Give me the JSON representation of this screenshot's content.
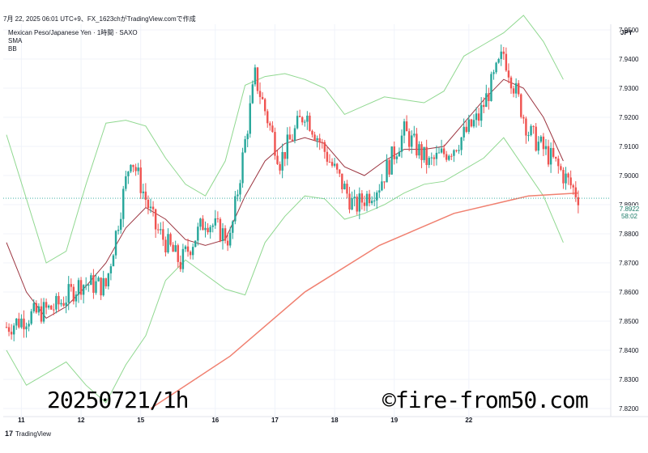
{
  "header": {
    "text": "7月 22, 2025 06:01 UTC+9、FX_1623chがTradingView.comで作成"
  },
  "legend": {
    "symbol_line": "Mexican Peso/Japanese Yen · 1時間 · SAXO",
    "indicator1": "SMA",
    "indicator2": "BB"
  },
  "price_axis": {
    "currency": "JPY"
  },
  "current_price": {
    "value": "7.8922",
    "countdown": "58:02"
  },
  "watermarks": {
    "left": "20250721/1h",
    "right": "©fire-from50.com"
  },
  "footer": {
    "brand": "TradingView",
    "logo": "tv-logo-icon"
  },
  "colors": {
    "bull": "#26a69a",
    "bear": "#ef5350",
    "bb_band": "#90d890",
    "bb_basis": "#9c3540",
    "sma": "#f08070",
    "grid": "#f0f3fa",
    "current_line": "#26a69a"
  },
  "chart_data": {
    "type": "candlestick",
    "title": "",
    "x_tick_labels": [
      "11",
      "12",
      "15",
      "16",
      "17",
      "18",
      "19",
      "22"
    ],
    "y_tick_labels": [
      "7.8200",
      "7.8300",
      "7.8400",
      "7.8500",
      "7.8600",
      "7.8700",
      "7.8800",
      "7.8900",
      "7.9000",
      "7.9100",
      "7.9200",
      "7.9300",
      "7.9400",
      "7.9500"
    ],
    "ylim": [
      7.8195,
      7.9575
    ],
    "grid": true,
    "close_points": [
      {
        "t": 0,
        "v": 7.848
      },
      {
        "t": 10,
        "v": 7.852
      },
      {
        "t": 20,
        "v": 7.855
      },
      {
        "t": 30,
        "v": 7.863
      },
      {
        "t": 40,
        "v": 7.862
      },
      {
        "t": 50,
        "v": 7.907
      },
      {
        "t": 60,
        "v": 7.882
      },
      {
        "t": 70,
        "v": 7.87
      },
      {
        "t": 80,
        "v": 7.885
      },
      {
        "t": 90,
        "v": 7.878
      },
      {
        "t": 100,
        "v": 7.934
      },
      {
        "t": 110,
        "v": 7.905
      },
      {
        "t": 120,
        "v": 7.922
      },
      {
        "t": 130,
        "v": 7.905
      },
      {
        "t": 140,
        "v": 7.889
      },
      {
        "t": 150,
        "v": 7.897
      },
      {
        "t": 160,
        "v": 7.915
      },
      {
        "t": 170,
        "v": 7.904
      },
      {
        "t": 180,
        "v": 7.91
      },
      {
        "t": 190,
        "v": 7.92
      },
      {
        "t": 200,
        "v": 7.942
      },
      {
        "t": 210,
        "v": 7.915
      },
      {
        "t": 220,
        "v": 7.905
      },
      {
        "t": 230,
        "v": 7.893
      }
    ],
    "sma_points": [
      {
        "t": 58,
        "v": 7.82
      },
      {
        "t": 90,
        "v": 7.838
      },
      {
        "t": 120,
        "v": 7.86
      },
      {
        "t": 150,
        "v": 7.876
      },
      {
        "t": 180,
        "v": 7.887
      },
      {
        "t": 210,
        "v": 7.893
      },
      {
        "t": 230,
        "v": 7.894
      }
    ],
    "bb_basis_points": [
      {
        "t": 0,
        "v": 7.877
      },
      {
        "t": 8,
        "v": 7.86
      },
      {
        "t": 16,
        "v": 7.851
      },
      {
        "t": 24,
        "v": 7.855
      },
      {
        "t": 32,
        "v": 7.862
      },
      {
        "t": 40,
        "v": 7.87
      },
      {
        "t": 48,
        "v": 7.882
      },
      {
        "t": 56,
        "v": 7.889
      },
      {
        "t": 64,
        "v": 7.885
      },
      {
        "t": 72,
        "v": 7.878
      },
      {
        "t": 80,
        "v": 7.876
      },
      {
        "t": 88,
        "v": 7.878
      },
      {
        "t": 96,
        "v": 7.893
      },
      {
        "t": 104,
        "v": 7.905
      },
      {
        "t": 112,
        "v": 7.911
      },
      {
        "t": 120,
        "v": 7.913
      },
      {
        "t": 128,
        "v": 7.911
      },
      {
        "t": 136,
        "v": 7.903
      },
      {
        "t": 144,
        "v": 7.9
      },
      {
        "t": 152,
        "v": 7.905
      },
      {
        "t": 160,
        "v": 7.909
      },
      {
        "t": 168,
        "v": 7.909
      },
      {
        "t": 176,
        "v": 7.91
      },
      {
        "t": 184,
        "v": 7.918
      },
      {
        "t": 192,
        "v": 7.926
      },
      {
        "t": 200,
        "v": 7.933
      },
      {
        "t": 208,
        "v": 7.93
      },
      {
        "t": 216,
        "v": 7.92
      },
      {
        "t": 224,
        "v": 7.905
      }
    ],
    "bb_upper_points": [
      {
        "t": 0,
        "v": 7.914
      },
      {
        "t": 8,
        "v": 7.892
      },
      {
        "t": 16,
        "v": 7.87
      },
      {
        "t": 24,
        "v": 7.874
      },
      {
        "t": 32,
        "v": 7.897
      },
      {
        "t": 40,
        "v": 7.918
      },
      {
        "t": 48,
        "v": 7.919
      },
      {
        "t": 56,
        "v": 7.917
      },
      {
        "t": 64,
        "v": 7.906
      },
      {
        "t": 72,
        "v": 7.897
      },
      {
        "t": 80,
        "v": 7.893
      },
      {
        "t": 88,
        "v": 7.905
      },
      {
        "t": 96,
        "v": 7.931
      },
      {
        "t": 104,
        "v": 7.934
      },
      {
        "t": 112,
        "v": 7.935
      },
      {
        "t": 120,
        "v": 7.933
      },
      {
        "t": 128,
        "v": 7.93
      },
      {
        "t": 136,
        "v": 7.921
      },
      {
        "t": 144,
        "v": 7.924
      },
      {
        "t": 152,
        "v": 7.927
      },
      {
        "t": 160,
        "v": 7.926
      },
      {
        "t": 168,
        "v": 7.925
      },
      {
        "t": 176,
        "v": 7.929
      },
      {
        "t": 184,
        "v": 7.941
      },
      {
        "t": 192,
        "v": 7.945
      },
      {
        "t": 200,
        "v": 7.949
      },
      {
        "t": 208,
        "v": 7.955
      },
      {
        "t": 216,
        "v": 7.946
      },
      {
        "t": 224,
        "v": 7.933
      }
    ],
    "bb_lower_points": [
      {
        "t": 0,
        "v": 7.84
      },
      {
        "t": 8,
        "v": 7.828
      },
      {
        "t": 16,
        "v": 7.832
      },
      {
        "t": 24,
        "v": 7.836
      },
      {
        "t": 32,
        "v": 7.828
      },
      {
        "t": 40,
        "v": 7.822
      },
      {
        "t": 48,
        "v": 7.835
      },
      {
        "t": 56,
        "v": 7.845
      },
      {
        "t": 64,
        "v": 7.864
      },
      {
        "t": 72,
        "v": 7.871
      },
      {
        "t": 80,
        "v": 7.866
      },
      {
        "t": 88,
        "v": 7.861
      },
      {
        "t": 96,
        "v": 7.859
      },
      {
        "t": 104,
        "v": 7.877
      },
      {
        "t": 112,
        "v": 7.886
      },
      {
        "t": 120,
        "v": 7.893
      },
      {
        "t": 128,
        "v": 7.892
      },
      {
        "t": 136,
        "v": 7.885
      },
      {
        "t": 144,
        "v": 7.887
      },
      {
        "t": 152,
        "v": 7.89
      },
      {
        "t": 160,
        "v": 7.894
      },
      {
        "t": 168,
        "v": 7.897
      },
      {
        "t": 176,
        "v": 7.898
      },
      {
        "t": 184,
        "v": 7.902
      },
      {
        "t": 192,
        "v": 7.906
      },
      {
        "t": 200,
        "v": 7.913
      },
      {
        "t": 208,
        "v": 7.903
      },
      {
        "t": 216,
        "v": 7.893
      },
      {
        "t": 224,
        "v": 7.877
      }
    ],
    "t_range": [
      0,
      232
    ],
    "x_tick_t": [
      6,
      30,
      54,
      84,
      108,
      132,
      156,
      186
    ]
  }
}
